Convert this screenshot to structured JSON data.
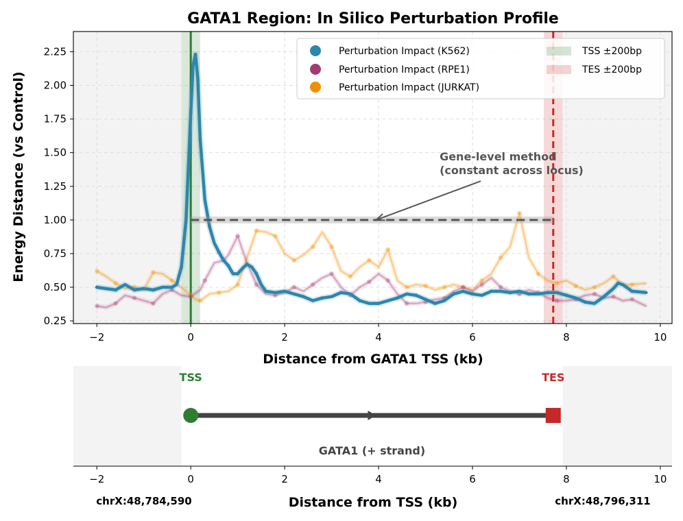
{
  "chart_data": [
    {
      "type": "line",
      "title": "GATA1 Region: In Silico Perturbation Profile",
      "xlabel": "Distance from GATA1 TSS (kb)",
      "ylabel": "Energy Distance (vs Control)",
      "xlim": [
        -2.5,
        10.25
      ],
      "ylim": [
        0.23,
        2.4
      ],
      "xticks": [
        -2,
        0,
        2,
        4,
        6,
        8,
        10
      ],
      "yticks": [
        0.25,
        0.5,
        0.75,
        1.0,
        1.25,
        1.5,
        1.75,
        2.0,
        2.25
      ],
      "ytick_labels": [
        "0.25",
        "0.50",
        "0.75",
        "1.00",
        "1.25",
        "1.50",
        "1.75",
        "2.00",
        "2.25"
      ],
      "grid": true,
      "legend_position": "top-right",
      "colors": {
        "k562": "#2e86ab",
        "rpe1": "#a23b72",
        "jurkat": "#f18f01",
        "tss": "#2e7d32",
        "tes": "#c62828",
        "gene_level": "#555555"
      },
      "regions": [
        {
          "label": "TSS ±200bp",
          "x0": -0.2,
          "x1": 0.2
        },
        {
          "label": "TES ±200bp",
          "x0": 7.52,
          "x1": 7.92
        }
      ],
      "tss_x": 0.0,
      "tes_x": 7.72,
      "gene_level_value": 1.0,
      "annotation": {
        "text_line1": "Gene-level method",
        "text_line2": "(constant across locus)",
        "x": 5.3,
        "y": 1.35,
        "arrow_to": [
          3.95,
          1.0
        ]
      },
      "series": [
        {
          "name": "Perturbation Impact (K562)",
          "color": "#2e86ab",
          "points": [
            [
              -2,
              0.5
            ],
            [
              -1.8,
              0.49
            ],
            [
              -1.6,
              0.48
            ],
            [
              -1.4,
              0.52
            ],
            [
              -1.2,
              0.48
            ],
            [
              -1.0,
              0.49
            ],
            [
              -0.8,
              0.48
            ],
            [
              -0.6,
              0.5
            ],
            [
              -0.4,
              0.5
            ],
            [
              -0.3,
              0.52
            ],
            [
              -0.2,
              0.65
            ],
            [
              -0.1,
              1.0
            ],
            [
              0.0,
              1.8
            ],
            [
              0.05,
              2.15
            ],
            [
              0.1,
              2.23
            ],
            [
              0.15,
              2.05
            ],
            [
              0.2,
              1.6
            ],
            [
              0.3,
              1.15
            ],
            [
              0.4,
              0.95
            ],
            [
              0.5,
              0.83
            ],
            [
              0.6,
              0.76
            ],
            [
              0.7,
              0.7
            ],
            [
              0.8,
              0.66
            ],
            [
              0.9,
              0.6
            ],
            [
              1.0,
              0.6
            ],
            [
              1.1,
              0.64
            ],
            [
              1.2,
              0.67
            ],
            [
              1.3,
              0.65
            ],
            [
              1.4,
              0.6
            ],
            [
              1.5,
              0.52
            ],
            [
              1.6,
              0.47
            ],
            [
              1.8,
              0.46
            ],
            [
              2.0,
              0.47
            ],
            [
              2.2,
              0.45
            ],
            [
              2.4,
              0.43
            ],
            [
              2.6,
              0.4
            ],
            [
              2.8,
              0.42
            ],
            [
              3.0,
              0.43
            ],
            [
              3.2,
              0.46
            ],
            [
              3.4,
              0.45
            ],
            [
              3.6,
              0.4
            ],
            [
              3.8,
              0.38
            ],
            [
              4.0,
              0.38
            ],
            [
              4.2,
              0.4
            ],
            [
              4.4,
              0.42
            ],
            [
              4.6,
              0.45
            ],
            [
              4.8,
              0.44
            ],
            [
              5.0,
              0.41
            ],
            [
              5.2,
              0.38
            ],
            [
              5.4,
              0.4
            ],
            [
              5.6,
              0.45
            ],
            [
              5.8,
              0.47
            ],
            [
              6.0,
              0.45
            ],
            [
              6.2,
              0.44
            ],
            [
              6.4,
              0.47
            ],
            [
              6.6,
              0.47
            ],
            [
              6.8,
              0.46
            ],
            [
              7.0,
              0.47
            ],
            [
              7.2,
              0.45
            ],
            [
              7.4,
              0.45
            ],
            [
              7.6,
              0.46
            ],
            [
              7.8,
              0.46
            ],
            [
              8.0,
              0.44
            ],
            [
              8.2,
              0.42
            ],
            [
              8.4,
              0.39
            ],
            [
              8.6,
              0.38
            ],
            [
              8.8,
              0.43
            ],
            [
              9.0,
              0.49
            ],
            [
              9.1,
              0.53
            ],
            [
              9.2,
              0.52
            ],
            [
              9.4,
              0.47
            ],
            [
              9.7,
              0.46
            ]
          ]
        },
        {
          "name": "Perturbation Impact (RPE1)",
          "color": "#a23b72",
          "points": [
            [
              -2,
              0.36
            ],
            [
              -1.8,
              0.35
            ],
            [
              -1.6,
              0.38
            ],
            [
              -1.4,
              0.44
            ],
            [
              -1.2,
              0.42
            ],
            [
              -1.0,
              0.4
            ],
            [
              -0.8,
              0.38
            ],
            [
              -0.6,
              0.45
            ],
            [
              -0.4,
              0.48
            ],
            [
              -0.2,
              0.44
            ],
            [
              0.0,
              0.43
            ],
            [
              0.2,
              0.48
            ],
            [
              0.3,
              0.55
            ],
            [
              0.5,
              0.68
            ],
            [
              0.7,
              0.7
            ],
            [
              0.8,
              0.74
            ],
            [
              1.0,
              0.88
            ],
            [
              1.2,
              0.68
            ],
            [
              1.4,
              0.52
            ],
            [
              1.6,
              0.45
            ],
            [
              1.8,
              0.44
            ],
            [
              2.0,
              0.46
            ],
            [
              2.2,
              0.5
            ],
            [
              2.4,
              0.47
            ],
            [
              2.6,
              0.52
            ],
            [
              2.8,
              0.57
            ],
            [
              3.0,
              0.6
            ],
            [
              3.2,
              0.5
            ],
            [
              3.4,
              0.44
            ],
            [
              3.6,
              0.5
            ],
            [
              3.8,
              0.54
            ],
            [
              4.0,
              0.6
            ],
            [
              4.2,
              0.55
            ],
            [
              4.4,
              0.45
            ],
            [
              4.6,
              0.38
            ],
            [
              4.8,
              0.38
            ],
            [
              5.0,
              0.39
            ],
            [
              5.2,
              0.41
            ],
            [
              5.4,
              0.42
            ],
            [
              5.6,
              0.47
            ],
            [
              5.8,
              0.5
            ],
            [
              6.0,
              0.47
            ],
            [
              6.2,
              0.52
            ],
            [
              6.4,
              0.57
            ],
            [
              6.6,
              0.5
            ],
            [
              6.8,
              0.47
            ],
            [
              7.0,
              0.45
            ],
            [
              7.2,
              0.48
            ],
            [
              7.4,
              0.46
            ],
            [
              7.6,
              0.42
            ],
            [
              7.8,
              0.4
            ],
            [
              8.0,
              0.4
            ],
            [
              8.2,
              0.41
            ],
            [
              8.4,
              0.44
            ],
            [
              8.6,
              0.45
            ],
            [
              8.8,
              0.42
            ],
            [
              9.0,
              0.43
            ],
            [
              9.2,
              0.4
            ],
            [
              9.4,
              0.41
            ],
            [
              9.7,
              0.36
            ]
          ]
        },
        {
          "name": "Perturbation Impact (JURKAT)",
          "color": "#f18f01",
          "points": [
            [
              -2,
              0.62
            ],
            [
              -1.8,
              0.58
            ],
            [
              -1.6,
              0.53
            ],
            [
              -1.4,
              0.49
            ],
            [
              -1.2,
              0.5
            ],
            [
              -1.0,
              0.48
            ],
            [
              -0.8,
              0.61
            ],
            [
              -0.6,
              0.6
            ],
            [
              -0.4,
              0.55
            ],
            [
              -0.2,
              0.5
            ],
            [
              0.0,
              0.44
            ],
            [
              0.1,
              0.41
            ],
            [
              0.2,
              0.4
            ],
            [
              0.4,
              0.45
            ],
            [
              0.6,
              0.46
            ],
            [
              0.8,
              0.47
            ],
            [
              1.0,
              0.52
            ],
            [
              1.2,
              0.72
            ],
            [
              1.4,
              0.92
            ],
            [
              1.6,
              0.91
            ],
            [
              1.8,
              0.88
            ],
            [
              2.0,
              0.75
            ],
            [
              2.2,
              0.7
            ],
            [
              2.4,
              0.74
            ],
            [
              2.6,
              0.8
            ],
            [
              2.8,
              0.91
            ],
            [
              3.0,
              0.8
            ],
            [
              3.2,
              0.62
            ],
            [
              3.4,
              0.58
            ],
            [
              3.6,
              0.65
            ],
            [
              3.8,
              0.7
            ],
            [
              4.0,
              0.65
            ],
            [
              4.2,
              0.78
            ],
            [
              4.4,
              0.55
            ],
            [
              4.6,
              0.5
            ],
            [
              4.8,
              0.52
            ],
            [
              5.0,
              0.51
            ],
            [
              5.2,
              0.48
            ],
            [
              5.4,
              0.5
            ],
            [
              5.6,
              0.52
            ],
            [
              5.8,
              0.5
            ],
            [
              6.0,
              0.48
            ],
            [
              6.2,
              0.55
            ],
            [
              6.4,
              0.6
            ],
            [
              6.6,
              0.72
            ],
            [
              6.8,
              0.8
            ],
            [
              7.0,
              1.05
            ],
            [
              7.2,
              0.72
            ],
            [
              7.4,
              0.6
            ],
            [
              7.6,
              0.55
            ],
            [
              7.8,
              0.53
            ],
            [
              8.0,
              0.55
            ],
            [
              8.2,
              0.51
            ],
            [
              8.4,
              0.48
            ],
            [
              8.6,
              0.5
            ],
            [
              8.8,
              0.53
            ],
            [
              9.0,
              0.58
            ],
            [
              9.2,
              0.52
            ],
            [
              9.4,
              0.52
            ],
            [
              9.7,
              0.53
            ]
          ]
        }
      ]
    },
    {
      "type": "gene_track",
      "xlabel": "Distance from TSS (kb)",
      "xlim": [
        -2.5,
        10.25
      ],
      "xticks": [
        -2,
        0,
        2,
        4,
        6,
        8,
        10
      ],
      "tss_label": "TSS",
      "tes_label": "TES",
      "gene_label": "GATA1 (+ strand)",
      "tss_x": 0.0,
      "tes_x": 7.72,
      "left_coord": "chrX:48,784,590",
      "right_coord": "chrX:48,796,311"
    }
  ]
}
